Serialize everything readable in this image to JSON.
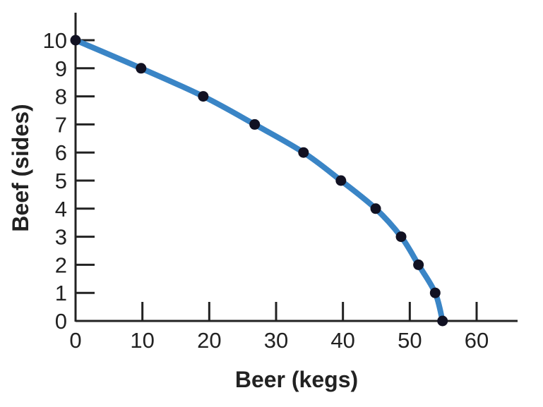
{
  "chart_data": {
    "type": "line",
    "title": "",
    "xlabel": "Beer (kegs)",
    "ylabel": "Beef (sides)",
    "xlim": [
      0,
      66
    ],
    "ylim": [
      0,
      11
    ],
    "xticks": [
      0,
      10,
      20,
      30,
      40,
      50,
      60
    ],
    "yticks": [
      0,
      1,
      2,
      3,
      4,
      5,
      6,
      7,
      8,
      9,
      10
    ],
    "grid": false,
    "legend": "none",
    "series": [
      {
        "line_color": "#3a85c6",
        "marker_color": "#111122",
        "points": [
          {
            "x": 0,
            "y": 10
          },
          {
            "x": 9.8,
            "y": 9
          },
          {
            "x": 19.1,
            "y": 8
          },
          {
            "x": 26.8,
            "y": 7
          },
          {
            "x": 34.1,
            "y": 6
          },
          {
            "x": 39.7,
            "y": 5
          },
          {
            "x": 44.9,
            "y": 4
          },
          {
            "x": 48.7,
            "y": 3
          },
          {
            "x": 51.3,
            "y": 2
          },
          {
            "x": 53.8,
            "y": 1
          },
          {
            "x": 54.9,
            "y": 0
          }
        ]
      }
    ]
  }
}
